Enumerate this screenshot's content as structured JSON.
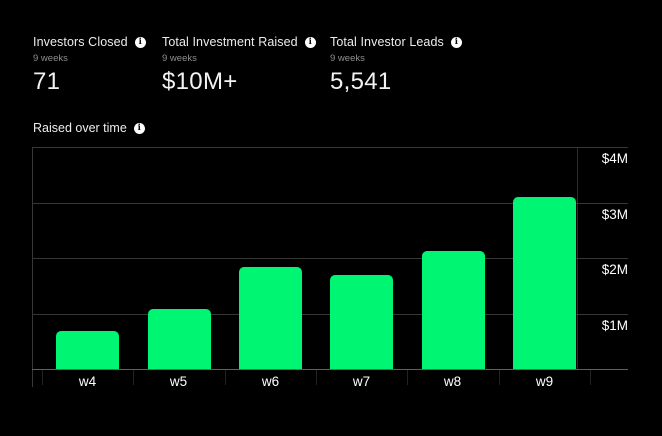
{
  "stats": [
    {
      "label": "Investors Closed",
      "sublabel": "9 weeks",
      "value": "71"
    },
    {
      "label": "Total Investment Raised",
      "sublabel": "9 weeks",
      "value": "$10M+"
    },
    {
      "label": "Total Investor Leads",
      "sublabel": "9 weeks",
      "value": "5,541"
    }
  ],
  "chart": {
    "title": "Raised over time"
  },
  "chart_data": {
    "type": "bar",
    "title": "Raised over time",
    "categories": [
      "w4",
      "w5",
      "w6",
      "w7",
      "w8",
      "w9"
    ],
    "values": [
      0.69,
      1.08,
      1.84,
      1.69,
      2.13,
      3.1
    ],
    "xlabel": "",
    "ylabel": "",
    "ylim": [
      0,
      4
    ],
    "yticks": [
      {
        "value": 4,
        "label": "$4M"
      },
      {
        "value": 3,
        "label": "$3M"
      },
      {
        "value": 2,
        "label": "$2M"
      },
      {
        "value": 1,
        "label": "$1M"
      }
    ],
    "grid": true,
    "legend": false,
    "y_axis_position": "right",
    "bar_color": "#00F573"
  },
  "icons": {
    "info_glyph": "i"
  },
  "colors": {
    "background": "#000000",
    "bar": "#00F573",
    "grid": "#373737",
    "axis_line": "#606060",
    "text_primary": "#f2f2f2",
    "text_secondary": "#8e8e8e"
  }
}
